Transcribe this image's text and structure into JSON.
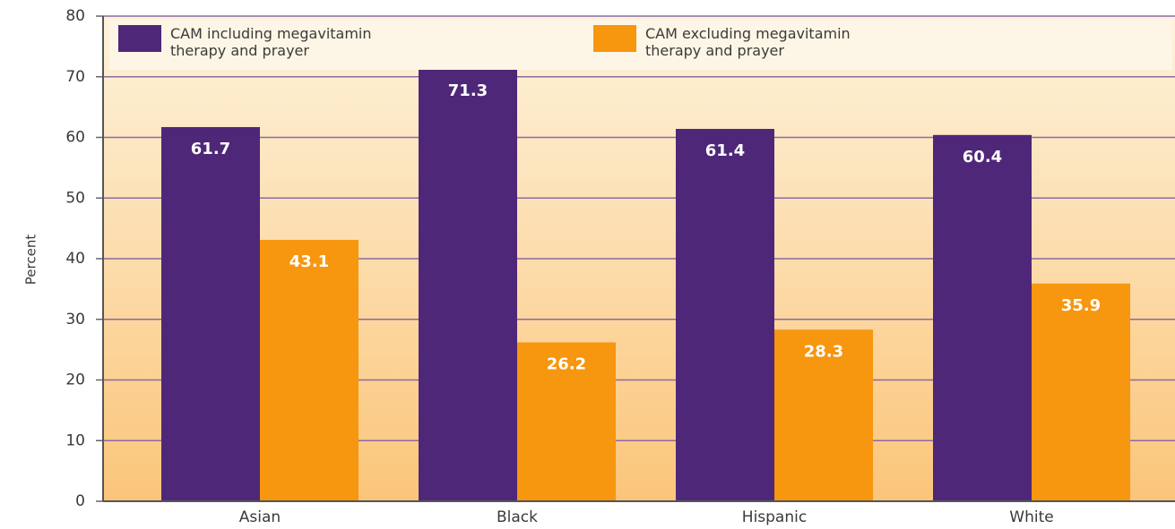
{
  "chart_data": {
    "type": "bar",
    "ylabel": "Percent",
    "categories": [
      "Asian",
      "Black",
      "Hispanic",
      "White"
    ],
    "series": [
      {
        "name": "CAM including megavitamin therapy and prayer",
        "color": "#4f2778",
        "values": [
          61.7,
          71.3,
          61.4,
          60.4
        ]
      },
      {
        "name": "CAM excluding megavitamin therapy and prayer",
        "color": "#f7960f",
        "values": [
          43.1,
          26.2,
          28.3,
          35.9
        ]
      }
    ],
    "ylim": [
      0,
      80
    ],
    "yticks": [
      0,
      10,
      20,
      30,
      40,
      50,
      60,
      70,
      80
    ],
    "grid": true
  }
}
